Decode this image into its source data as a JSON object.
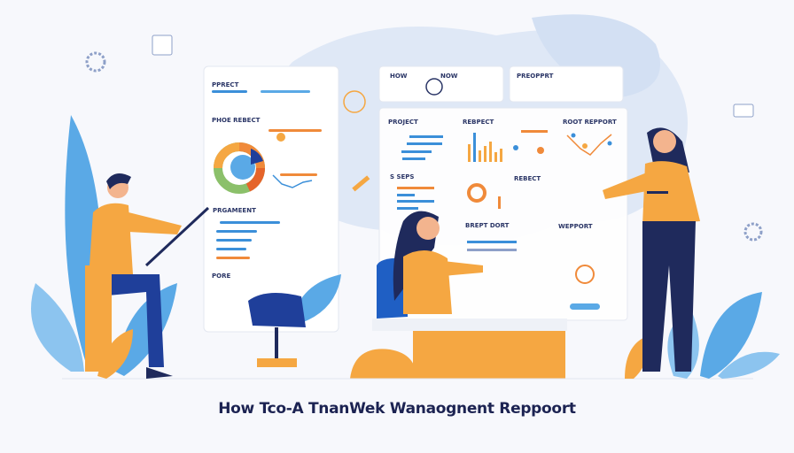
{
  "title": "How Tco-A TnanWek Wanaognent Reppoort",
  "colors": {
    "blue": "#3b8fd9",
    "orange": "#f08a3a",
    "navy": "#1f2a5c",
    "green": "#8bc06a",
    "mustard": "#f5a742",
    "leaf": "#5aa9e6"
  },
  "panels": {
    "left_top": "PPRECT",
    "left_second": "PHOE REBECT",
    "left_third": "PRGAMEENT",
    "left_bottom": "PORE",
    "top_mid_a": "HOW",
    "top_mid_b": "NOW",
    "top_right": "PREOPPRT",
    "row2_a": "PROJECT",
    "row2_b": "REBPECT",
    "row2_c": "ROOT REPPORT",
    "row3_a": "S SEPS",
    "row3_b": "REBECT",
    "row4_a": "BREPT DORT",
    "row4_b": "WEPPORT"
  }
}
